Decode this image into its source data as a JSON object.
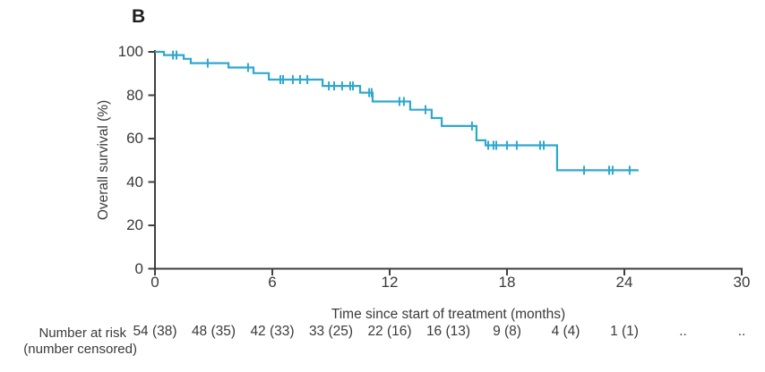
{
  "panel_label": "B",
  "colors": {
    "curve": "#2ea8ce",
    "axis": "#3f3f3f",
    "text": "#3a3a3a",
    "background": "#ffffff"
  },
  "chart_data": {
    "type": "line",
    "subtype": "kaplan-meier-step",
    "title": "",
    "xlabel": "Time since start of treatment (months)",
    "ylabel": "Overall survival (%)",
    "xlim": [
      0,
      30
    ],
    "ylim": [
      0,
      100
    ],
    "x_ticks": [
      0,
      6,
      12,
      18,
      24,
      30
    ],
    "y_ticks": [
      0,
      20,
      40,
      60,
      80,
      100
    ],
    "grid": false,
    "legend": "none",
    "series": [
      {
        "name": "Overall survival",
        "color": "#2ea8ce",
        "steps": [
          [
            0,
            100
          ],
          [
            0.46,
            98.5
          ],
          [
            1.47,
            96.8
          ],
          [
            1.83,
            94.8
          ],
          [
            3.76,
            92.8
          ],
          [
            5.04,
            90.2
          ],
          [
            5.82,
            87.2
          ],
          [
            8.57,
            84.3
          ],
          [
            10.49,
            81.2
          ],
          [
            11.13,
            77.1
          ],
          [
            13.05,
            73.3
          ],
          [
            14.15,
            69.5
          ],
          [
            14.66,
            65.8
          ],
          [
            16.44,
            59.2
          ],
          [
            16.9,
            56.9
          ],
          [
            20.56,
            45.4
          ]
        ],
        "end_time": 24.73,
        "censor_marks": [
          [
            0.92,
            98.5
          ],
          [
            1.1,
            98.5
          ],
          [
            2.7,
            94.8
          ],
          [
            4.76,
            92.8
          ],
          [
            6.41,
            87.2
          ],
          [
            6.55,
            87.2
          ],
          [
            7.05,
            87.2
          ],
          [
            7.42,
            87.2
          ],
          [
            7.79,
            87.2
          ],
          [
            8.89,
            84.3
          ],
          [
            9.16,
            84.3
          ],
          [
            9.57,
            84.3
          ],
          [
            9.98,
            84.3
          ],
          [
            10.12,
            84.3
          ],
          [
            10.95,
            81.2
          ],
          [
            11.08,
            81.2
          ],
          [
            12.5,
            77.1
          ],
          [
            12.73,
            77.1
          ],
          [
            13.83,
            73.3
          ],
          [
            16.21,
            65.8
          ],
          [
            17.04,
            56.9
          ],
          [
            17.31,
            56.9
          ],
          [
            17.45,
            56.9
          ],
          [
            18.0,
            56.9
          ],
          [
            18.5,
            56.9
          ],
          [
            19.69,
            56.9
          ],
          [
            19.88,
            56.9
          ],
          [
            21.94,
            45.4
          ],
          [
            23.22,
            45.4
          ],
          [
            23.4,
            45.4
          ],
          [
            24.27,
            45.4
          ]
        ]
      }
    ]
  },
  "risk_table": {
    "label_line1": "Number at risk",
    "label_line2": "(number censored)",
    "times": [
      0,
      3,
      6,
      9,
      12,
      15,
      18,
      21,
      24,
      27,
      30
    ],
    "values": [
      "54 (38)",
      "48 (35)",
      "42 (33)",
      "33 (25)",
      "22 (16)",
      "16 (13)",
      "9 (8)",
      "4 (4)",
      "1 (1)",
      "..",
      ".."
    ]
  }
}
